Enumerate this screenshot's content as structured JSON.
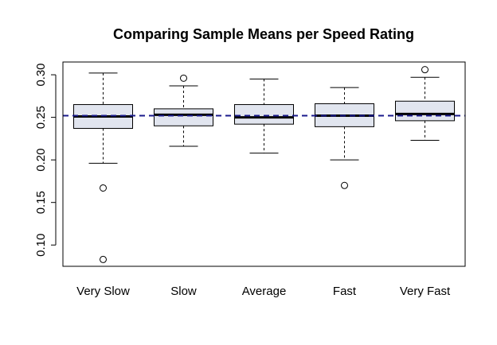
{
  "chart_data": {
    "type": "boxplot",
    "title": "Comparing Sample Means per Speed Rating",
    "xlabel": "",
    "ylabel": "",
    "categories": [
      "Very Slow",
      "Slow",
      "Average",
      "Fast",
      "Very Fast"
    ],
    "ylim": [
      0.075,
      0.315
    ],
    "yticks": [
      0.1,
      0.15,
      0.2,
      0.25,
      0.3
    ],
    "ytick_labels": [
      "0.10",
      "0.15",
      "0.20",
      "0.25",
      "0.30"
    ],
    "grid": false,
    "reference_line": {
      "value": 0.252,
      "style": "dashed",
      "color": "#1a1a8c"
    },
    "box_fill": "#e1e5ef",
    "boxes": [
      {
        "name": "Very Slow",
        "whisker_low": 0.196,
        "q1": 0.237,
        "median": 0.251,
        "q3": 0.265,
        "whisker_high": 0.302,
        "outliers": [
          0.167,
          0.083
        ]
      },
      {
        "name": "Slow",
        "whisker_low": 0.216,
        "q1": 0.24,
        "median": 0.253,
        "q3": 0.26,
        "whisker_high": 0.287,
        "outliers": [
          0.296
        ]
      },
      {
        "name": "Average",
        "whisker_low": 0.208,
        "q1": 0.242,
        "median": 0.25,
        "q3": 0.265,
        "whisker_high": 0.295,
        "outliers": []
      },
      {
        "name": "Fast",
        "whisker_low": 0.2,
        "q1": 0.239,
        "median": 0.252,
        "q3": 0.266,
        "whisker_high": 0.285,
        "outliers": [
          0.17
        ]
      },
      {
        "name": "Very Fast",
        "whisker_low": 0.223,
        "q1": 0.246,
        "median": 0.254,
        "q3": 0.269,
        "whisker_high": 0.297,
        "outliers": [
          0.306
        ]
      }
    ]
  }
}
